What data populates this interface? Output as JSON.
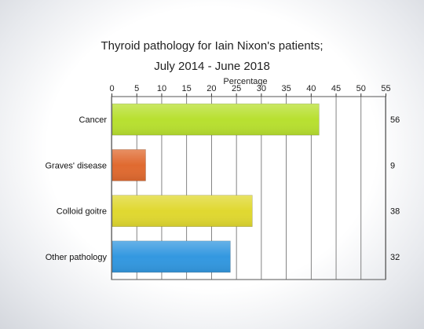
{
  "chart_data": {
    "type": "bar",
    "orientation": "horizontal",
    "title_line1": "Thyroid pathology for Iain Nixon's patients;",
    "title_line2": "July 2014 - June 2018",
    "xlabel": "Percentage",
    "xlabel_position": "top",
    "xlim": [
      0,
      55
    ],
    "xticks": [
      0,
      5,
      10,
      15,
      20,
      25,
      30,
      35,
      40,
      45,
      50,
      55
    ],
    "grid": true,
    "categories": [
      "Cancer",
      "Graves' disease",
      "Colloid goitre",
      "Other pathology"
    ],
    "values": [
      41.5,
      6.7,
      28.1,
      23.7
    ],
    "counts": [
      "56",
      "9",
      "38",
      "32"
    ],
    "colors": [
      "#b8e030",
      "#e06a30",
      "#e0d830",
      "#3398e0"
    ]
  }
}
